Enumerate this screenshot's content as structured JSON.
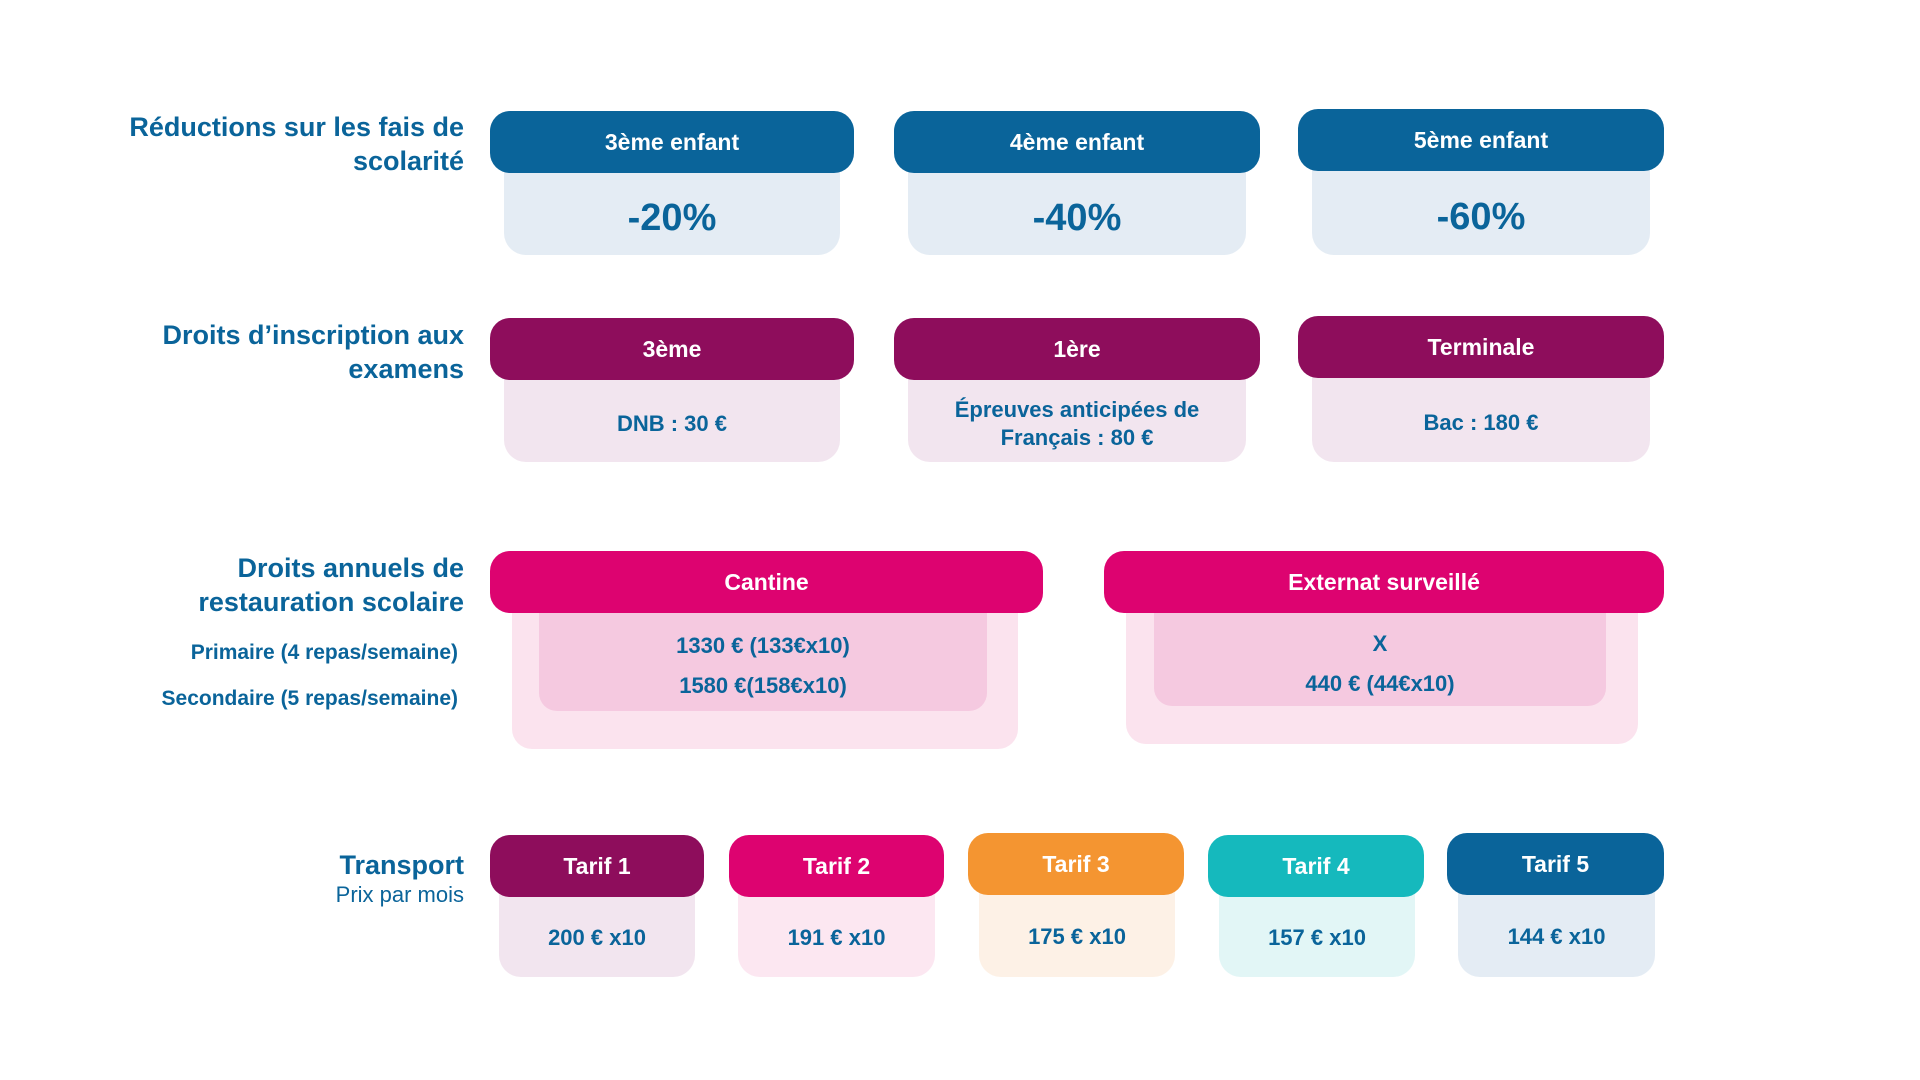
{
  "reductions": {
    "label": "Réductions sur les fais de scolarité",
    "items": [
      {
        "title": "3ème enfant",
        "value": "-20%"
      },
      {
        "title": "4ème enfant",
        "value": "-40%"
      },
      {
        "title": "5ème enfant",
        "value": "-60%"
      }
    ]
  },
  "examens": {
    "label": "Droits d’inscription aux examens",
    "items": [
      {
        "title": "3ème",
        "value": "DNB : 30 €"
      },
      {
        "title": "1ère",
        "value": "Épreuves anticipées de Français : 80 €"
      },
      {
        "title": "Terminale",
        "value": "Bac : 180 €"
      }
    ]
  },
  "restauration": {
    "label": "Droits annuels de restauration scolaire",
    "row_primaire": "Primaire (4 repas/semaine)",
    "row_secondaire": "Secondaire (5 repas/semaine)",
    "cantine": {
      "title": "Cantine",
      "primaire": "1330 € (133€x10)",
      "secondaire": "1580 €(158€x10)"
    },
    "externat": {
      "title": "Externat surveillé",
      "primaire": "X",
      "secondaire": "440 € (44€x10)"
    }
  },
  "transport": {
    "label": "Transport",
    "sublabel": "Prix par mois",
    "tarifs": [
      {
        "title": "Tarif 1",
        "value": "200 € x10"
      },
      {
        "title": "Tarif 2",
        "value": "191 € x10"
      },
      {
        "title": "Tarif 3",
        "value": "175 € x10"
      },
      {
        "title": "Tarif 4",
        "value": "157 € x10"
      },
      {
        "title": "Tarif 5",
        "value": "144 € x10"
      }
    ]
  },
  "colors": {
    "blue": "#0a649a",
    "plum": "#8e0d5c",
    "pink": "#dd0370",
    "orange": "#f49531",
    "teal": "#15b9bd"
  }
}
